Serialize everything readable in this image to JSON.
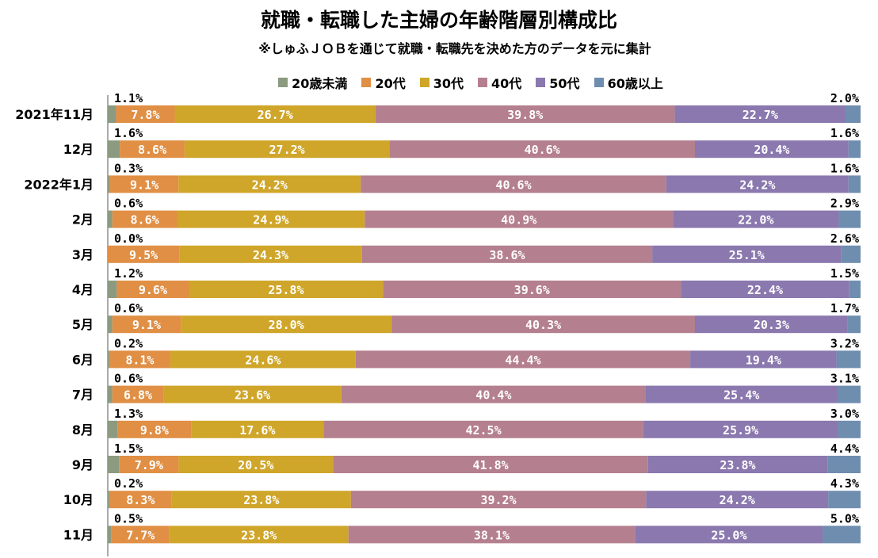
{
  "title": "就職・転職した主婦の年齢階層別構成比",
  "subtitle": "※しゅふＪＯＢを通じて就職・転職先を決めた方のデータを元に集計",
  "colors": {
    "20歳未満": "#8c9a80",
    "20代": "#e08f45",
    "30代": "#cfa62a",
    "40代": "#b47f8f",
    "50代": "#8a78ae",
    "60歳以上": "#6f8daf"
  },
  "chart_data": {
    "type": "bar",
    "orientation": "horizontal",
    "stacked": "percent",
    "legend_position": "top",
    "categories": [
      "2021年11月",
      "12月",
      "2022年1月",
      "2月",
      "3月",
      "4月",
      "5月",
      "6月",
      "7月",
      "8月",
      "9月",
      "10月",
      "11月"
    ],
    "series": [
      {
        "name": "20歳未満",
        "values": [
          1.1,
          1.6,
          0.3,
          0.6,
          0.0,
          1.2,
          0.6,
          0.2,
          0.6,
          1.3,
          1.5,
          0.2,
          0.5
        ]
      },
      {
        "name": "20代",
        "values": [
          7.8,
          8.6,
          9.1,
          8.6,
          9.5,
          9.6,
          9.1,
          8.1,
          6.8,
          9.8,
          7.9,
          8.3,
          7.7
        ]
      },
      {
        "name": "30代",
        "values": [
          26.7,
          27.2,
          24.2,
          24.9,
          24.3,
          25.8,
          28.0,
          24.6,
          23.6,
          17.6,
          20.5,
          23.8,
          23.8
        ]
      },
      {
        "name": "40代",
        "values": [
          39.8,
          40.6,
          40.6,
          40.9,
          38.6,
          39.6,
          40.3,
          44.4,
          40.4,
          42.5,
          41.8,
          39.2,
          38.1
        ]
      },
      {
        "name": "50代",
        "values": [
          22.7,
          20.4,
          24.2,
          22.0,
          25.1,
          22.4,
          20.3,
          19.4,
          25.4,
          25.9,
          23.8,
          24.2,
          25.0
        ]
      },
      {
        "name": "60歳以上",
        "values": [
          2.0,
          1.6,
          1.6,
          2.9,
          2.6,
          1.5,
          1.7,
          3.2,
          3.1,
          3.0,
          4.4,
          4.3,
          5.0
        ]
      }
    ],
    "data_labels": {
      "20歳未満": [
        "1.1%",
        "1.6%",
        "0.3%",
        "0.6%",
        "0.0%",
        "1.2%",
        "0.6%",
        "0.2%",
        "0.6%",
        "1.3%",
        "1.5%",
        "0.2%",
        "0.5%"
      ],
      "20代": [
        "7.8%",
        "8.6%",
        "9.1%",
        "8.6%",
        "9.5%",
        "9.6%",
        "9.1%",
        "8.1%",
        "6.8%",
        "9.8%",
        "7.9%",
        "8.3%",
        "7.7%"
      ],
      "30代": [
        "26.7%",
        "27.2%",
        "24.2%",
        "24.9%",
        "24.3%",
        "25.8%",
        "28.0%",
        "24.6%",
        "23.6%",
        "17.6%",
        "20.5%",
        "23.8%",
        "23.8%"
      ],
      "40代": [
        "39.8%",
        "40.6%",
        "40.6%",
        "40.9%",
        "38.6%",
        "39.6%",
        "40.3%",
        "44.4%",
        "40.4%",
        "42.5%",
        "41.8%",
        "39.2%",
        "38.1%"
      ],
      "50代": [
        "22.7%",
        "20.4%",
        "24.2%",
        "22.0%",
        "25.1%",
        "22.4%",
        "20.3%",
        "19.4%",
        "25.4%",
        "25.9%",
        "23.8%",
        "24.2%",
        "25.0%"
      ],
      "60歳以上": [
        "2.0%",
        "1.6%",
        "1.6%",
        "2.9%",
        "2.6%",
        "1.5%",
        "1.7%",
        "3.2%",
        "3.1%",
        "3.0%",
        "4.4%",
        "4.3%",
        "5.0%"
      ]
    }
  }
}
